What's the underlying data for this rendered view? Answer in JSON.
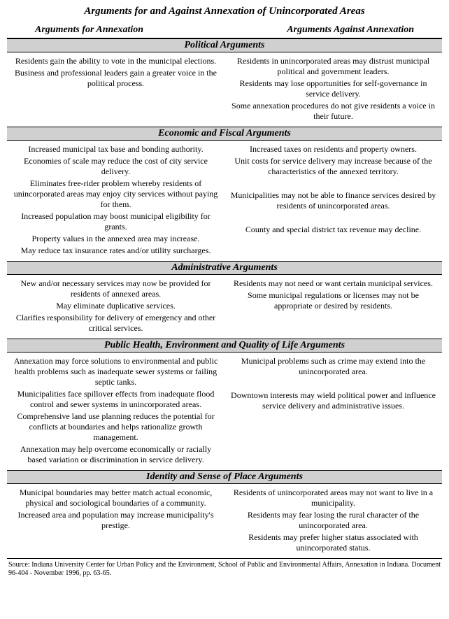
{
  "title": "Arguments for and Against Annexation of Unincorporated Areas",
  "col_for": "Arguments for Annexation",
  "col_against": "Arguments Against Annexation",
  "sections": [
    {
      "name": "Political Arguments",
      "for": [
        "Residents gain the ability to vote in the municipal elections.",
        "Business and professional leaders gain a greater voice in the political process."
      ],
      "against": [
        "Residents in unincorporated areas may distrust municipal political and government leaders.",
        "Residents may lose opportunities for self-governance in service delivery.",
        "Some annexation procedures do not give residents a voice in their future."
      ]
    },
    {
      "name": "Economic and Fiscal Arguments",
      "for": [
        "Increased municipal tax base and bonding authority.",
        "Economies of scale may reduce the cost of city service delivery.",
        "Eliminates free-rider problem whereby residents of unincorporated areas may enjoy city services without paying for them.",
        "Increased population may boost municipal eligibility for grants.",
        "Property values in the annexed area may increase.",
        "May reduce tax insurance rates and/or utility surcharges."
      ],
      "against": [
        "Increased taxes on residents and property owners.",
        "Unit costs for service delivery may increase because of the characteristics of the annexed territory.",
        "",
        "Municipalities may not be able to finance services desired by residents of unincorporated areas.",
        "",
        "County and special district tax revenue may decline."
      ]
    },
    {
      "name": "Administrative Arguments",
      "for": [
        "New and/or necessary services may now be provided for residents of annexed areas.",
        "May eliminate duplicative services.",
        "Clarifies responsibility for delivery of emergency and other critical services."
      ],
      "against": [
        "Residents may not need or want certain municipal services.",
        "Some municipal regulations or licenses may not be appropriate or desired by residents."
      ]
    },
    {
      "name": "Public Health, Environment and Quality of Life Arguments",
      "for": [
        "Annexation may force solutions to environmental and public health problems such as inadequate sewer systems or failing septic tanks.",
        "Municipalities face spillover effects from inadequate flood control and sewer systems in unincorporated areas.",
        "Comprehensive land use planning reduces the potential for conflicts at boundaries and helps rationalize growth management.",
        "Annexation may help overcome economically or racially based variation or discrimination in service delivery."
      ],
      "against": [
        "Municipal problems such as crime may extend into the unincorporated area.",
        "",
        "Downtown interests may wield political power and influence service delivery and administrative issues."
      ]
    },
    {
      "name": "Identity and Sense of Place Arguments",
      "for": [
        "Municipal boundaries may better match actual economic, physical and sociological boundaries of a community.",
        "Increased area and population may increase municipality's prestige."
      ],
      "against": [
        "Residents of unincorporated areas may not want to live in a municipality.",
        "Residents may fear losing the rural character of the unincorporated area.",
        "Residents may prefer higher status associated with unincorporated status."
      ]
    }
  ],
  "source": "Source: Indiana University Center for Urban Policy and the Environment, School of Public and Environmental Affairs, Annexation in Indiana. Document 96-404 - November 1996, pp. 63-65."
}
